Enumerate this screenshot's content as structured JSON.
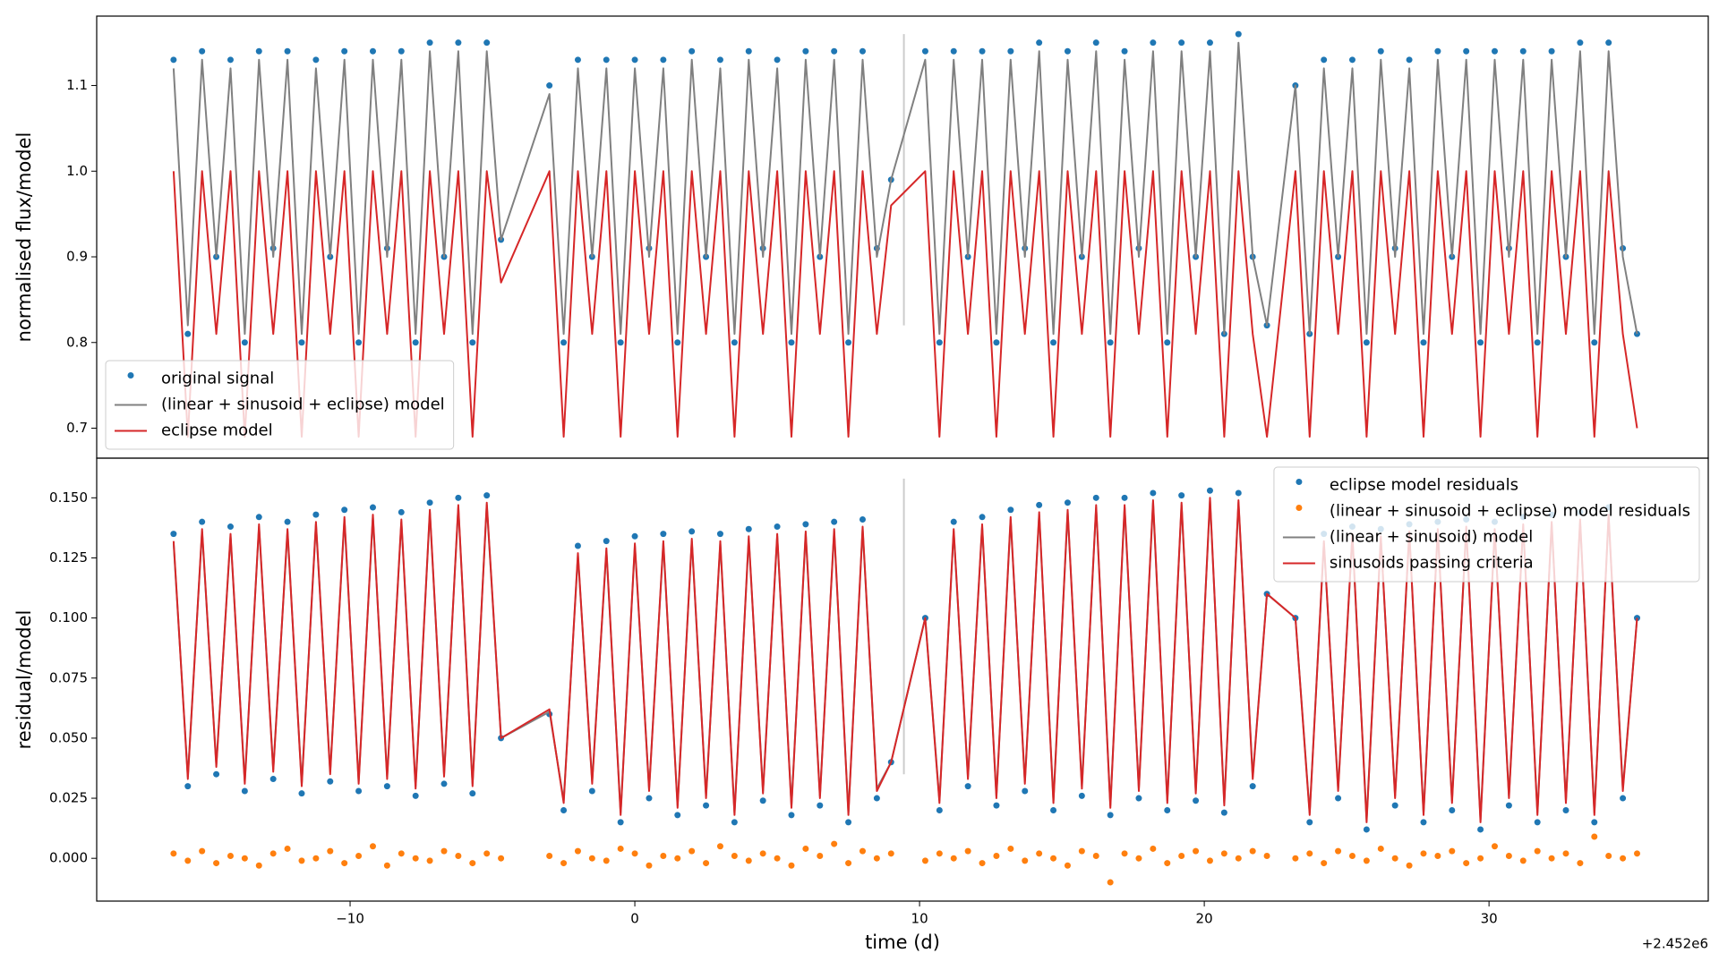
{
  "chart_data": [
    {
      "type": "line",
      "ylabel": "normalised flux/model",
      "xlim": [
        -18.9,
        37.7
      ],
      "ylim": [
        0.665,
        1.181
      ],
      "yticks": [
        0.7,
        0.8,
        0.9,
        {
          "value": 1,
          "label": "1.0"
        },
        1.1
      ],
      "legend": "lower left",
      "vline": {
        "x": 9.45,
        "y": [
          0.82,
          1.16
        ],
        "color": "#cccccc"
      },
      "x": [
        -16.2,
        -15.7,
        -15.2,
        -14.7,
        -14.2,
        -13.7,
        -13.2,
        -12.7,
        -12.2,
        -11.7,
        -11.2,
        -10.7,
        -10.2,
        -9.7,
        -9.2,
        -8.7,
        -8.2,
        -7.7,
        -7.2,
        -6.7,
        -6.2,
        -5.7,
        -5.2,
        -4.7,
        -3.0,
        -2.5,
        -2.0,
        -1.5,
        -1.0,
        -0.5,
        0.0,
        0.5,
        1.0,
        1.5,
        2.0,
        2.5,
        3.0,
        3.5,
        4.0,
        4.5,
        5.0,
        5.5,
        6.0,
        6.5,
        7.0,
        7.5,
        8.0,
        8.5,
        9.0,
        10.2,
        10.7,
        11.2,
        11.7,
        12.2,
        12.7,
        13.2,
        13.7,
        14.2,
        14.7,
        15.2,
        15.7,
        16.2,
        16.7,
        17.2,
        17.7,
        18.2,
        18.7,
        19.2,
        19.7,
        20.2,
        20.7,
        21.2,
        21.7,
        22.2,
        23.2,
        23.7,
        24.2,
        24.7,
        25.2,
        25.7,
        26.2,
        26.7,
        27.2,
        27.7,
        28.2,
        28.7,
        29.2,
        29.7,
        30.2,
        30.7,
        31.2,
        31.7,
        32.2,
        32.7,
        33.2,
        33.7,
        34.2,
        34.7,
        35.2
      ],
      "series": [
        {
          "name": "original signal",
          "type": "scatter",
          "color": "#1f77b4",
          "values": [
            1.13,
            0.81,
            1.14,
            0.9,
            1.13,
            0.8,
            1.14,
            0.91,
            1.14,
            0.8,
            1.13,
            0.9,
            1.14,
            0.8,
            1.14,
            0.91,
            1.14,
            0.8,
            1.15,
            0.9,
            1.15,
            0.8,
            1.15,
            0.92,
            1.1,
            0.8,
            1.13,
            0.9,
            1.13,
            0.8,
            1.13,
            0.91,
            1.13,
            0.8,
            1.14,
            0.9,
            1.13,
            0.8,
            1.14,
            0.91,
            1.13,
            0.8,
            1.14,
            0.9,
            1.14,
            0.8,
            1.14,
            0.91,
            0.99,
            1.14,
            0.8,
            1.14,
            0.9,
            1.14,
            0.8,
            1.14,
            0.91,
            1.15,
            0.8,
            1.14,
            0.9,
            1.15,
            0.8,
            1.14,
            0.91,
            1.15,
            0.8,
            1.15,
            0.9,
            1.15,
            0.81,
            1.16,
            0.9,
            0.82,
            1.1,
            0.81,
            1.13,
            0.9,
            1.13,
            0.8,
            1.14,
            0.91,
            1.13,
            0.8,
            1.14,
            0.9,
            1.14,
            0.8,
            1.14,
            0.91,
            1.14,
            0.8,
            1.14,
            0.9,
            1.15,
            0.8,
            1.15,
            0.91,
            0.81
          ]
        },
        {
          "name": "(linear + sinusoid + eclipse) model",
          "type": "line",
          "color": "#808080",
          "values": [
            1.12,
            0.82,
            1.13,
            0.9,
            1.12,
            0.81,
            1.13,
            0.9,
            1.13,
            0.81,
            1.12,
            0.9,
            1.13,
            0.81,
            1.13,
            0.9,
            1.13,
            0.81,
            1.14,
            0.9,
            1.14,
            0.81,
            1.14,
            0.92,
            1.09,
            0.81,
            1.12,
            0.9,
            1.12,
            0.81,
            1.12,
            0.9,
            1.12,
            0.81,
            1.13,
            0.9,
            1.12,
            0.81,
            1.13,
            0.9,
            1.12,
            0.81,
            1.13,
            0.9,
            1.13,
            0.81,
            1.13,
            0.9,
            0.99,
            1.13,
            0.81,
            1.13,
            0.9,
            1.13,
            0.81,
            1.13,
            0.9,
            1.14,
            0.81,
            1.13,
            0.9,
            1.14,
            0.81,
            1.13,
            0.9,
            1.14,
            0.81,
            1.14,
            0.9,
            1.14,
            0.81,
            1.15,
            0.9,
            0.82,
            1.1,
            0.81,
            1.12,
            0.9,
            1.12,
            0.81,
            1.13,
            0.9,
            1.12,
            0.81,
            1.13,
            0.9,
            1.13,
            0.81,
            1.13,
            0.9,
            1.13,
            0.81,
            1.13,
            0.9,
            1.14,
            0.81,
            1.14,
            0.9,
            0.81
          ]
        },
        {
          "name": "eclipse model",
          "type": "line",
          "color": "#d62728",
          "values": [
            1,
            0.69,
            1,
            0.81,
            1,
            0.69,
            1,
            0.81,
            1,
            0.69,
            1,
            0.81,
            1,
            0.69,
            1,
            0.81,
            1,
            0.69,
            1,
            0.81,
            1,
            0.69,
            1,
            0.87,
            1,
            0.69,
            1,
            0.81,
            1,
            0.69,
            1,
            0.81,
            1,
            0.69,
            1,
            0.81,
            1,
            0.69,
            1,
            0.81,
            1,
            0.69,
            1,
            0.81,
            1,
            0.69,
            1,
            0.81,
            0.96,
            1,
            0.69,
            1,
            0.81,
            1,
            0.69,
            1,
            0.81,
            1,
            0.69,
            1,
            0.81,
            1,
            0.69,
            1,
            0.81,
            1,
            0.69,
            1,
            0.81,
            1,
            0.69,
            1,
            0.81,
            0.69,
            1,
            0.69,
            1,
            0.81,
            1,
            0.69,
            1,
            0.81,
            1,
            0.69,
            1,
            0.81,
            1,
            0.69,
            1,
            0.81,
            1,
            0.69,
            1,
            0.81,
            1,
            0.69,
            1,
            0.81,
            0.7
          ]
        }
      ]
    },
    {
      "type": "line",
      "ylabel": "residual/model",
      "xlabel": "time (d)",
      "x_offset_label": "+2.452e6",
      "xlim": [
        -18.9,
        37.7
      ],
      "ylim": [
        -0.0178,
        0.1665
      ],
      "xticks": [
        {
          "value": -10,
          "label": "−10"
        },
        0,
        10,
        20,
        30
      ],
      "yticks": [
        {
          "value": 0,
          "label": "0.000"
        },
        {
          "value": 0.025,
          "label": "0.025"
        },
        {
          "value": 0.05,
          "label": "0.050"
        },
        {
          "value": 0.075,
          "label": "0.075"
        },
        {
          "value": 0.1,
          "label": "0.100"
        },
        {
          "value": 0.125,
          "label": "0.125"
        },
        {
          "value": 0.15,
          "label": "0.150"
        }
      ],
      "legend": "upper right",
      "vline": {
        "x": 9.45,
        "y": [
          0.035,
          0.158
        ],
        "color": "#cccccc"
      },
      "x": [
        -16.2,
        -15.7,
        -15.2,
        -14.7,
        -14.2,
        -13.7,
        -13.2,
        -12.7,
        -12.2,
        -11.7,
        -11.2,
        -10.7,
        -10.2,
        -9.7,
        -9.2,
        -8.7,
        -8.2,
        -7.7,
        -7.2,
        -6.7,
        -6.2,
        -5.7,
        -5.2,
        -4.7,
        -3.0,
        -2.5,
        -2.0,
        -1.5,
        -1.0,
        -0.5,
        0.0,
        0.5,
        1.0,
        1.5,
        2.0,
        2.5,
        3.0,
        3.5,
        4.0,
        4.5,
        5.0,
        5.5,
        6.0,
        6.5,
        7.0,
        7.5,
        8.0,
        8.5,
        9.0,
        10.2,
        10.7,
        11.2,
        11.7,
        12.2,
        12.7,
        13.2,
        13.7,
        14.2,
        14.7,
        15.2,
        15.7,
        16.2,
        16.7,
        17.2,
        17.7,
        18.2,
        18.7,
        19.2,
        19.7,
        20.2,
        20.7,
        21.2,
        21.7,
        22.2,
        23.2,
        23.7,
        24.2,
        24.7,
        25.2,
        25.7,
        26.2,
        26.7,
        27.2,
        27.7,
        28.2,
        28.7,
        29.2,
        29.7,
        30.2,
        30.7,
        31.2,
        31.7,
        32.2,
        32.7,
        33.2,
        33.7,
        34.2,
        34.7,
        35.2
      ],
      "series": [
        {
          "name": "eclipse model residuals",
          "type": "scatter",
          "color": "#1f77b4",
          "values": [
            0.135,
            0.03,
            0.14,
            0.035,
            0.138,
            0.028,
            0.142,
            0.033,
            0.14,
            0.027,
            0.143,
            0.032,
            0.145,
            0.028,
            0.146,
            0.03,
            0.144,
            0.026,
            0.148,
            0.031,
            0.15,
            0.027,
            0.151,
            0.05,
            0.06,
            0.02,
            0.13,
            0.028,
            0.132,
            0.015,
            0.134,
            0.025,
            0.135,
            0.018,
            0.136,
            0.022,
            0.135,
            0.015,
            0.137,
            0.024,
            0.138,
            0.018,
            0.139,
            0.022,
            0.14,
            0.015,
            0.141,
            0.025,
            0.04,
            0.1,
            0.02,
            0.14,
            0.03,
            0.142,
            0.022,
            0.145,
            0.028,
            0.147,
            0.02,
            0.148,
            0.026,
            0.15,
            0.018,
            0.15,
            0.025,
            0.152,
            0.02,
            0.151,
            0.024,
            0.153,
            0.019,
            0.152,
            0.03,
            0.11,
            0.1,
            0.015,
            0.135,
            0.025,
            0.138,
            0.012,
            0.137,
            0.022,
            0.139,
            0.015,
            0.14,
            0.02,
            0.141,
            0.012,
            0.14,
            0.022,
            0.142,
            0.015,
            0.143,
            0.02,
            0.144,
            0.015,
            0.146,
            0.025,
            0.1
          ]
        },
        {
          "name": "(linear + sinusoid + eclipse) model residuals",
          "type": "scatter",
          "color": "#ff7f0e",
          "values": [
            0.002,
            -0.001,
            0.003,
            -0.002,
            0.001,
            0.0,
            -0.003,
            0.002,
            0.004,
            -0.001,
            0.0,
            0.003,
            -0.002,
            0.001,
            0.005,
            -0.003,
            0.002,
            0.0,
            -0.001,
            0.003,
            0.001,
            -0.002,
            0.002,
            0.0,
            0.001,
            -0.002,
            0.003,
            0.0,
            -0.001,
            0.004,
            0.002,
            -0.003,
            0.001,
            0.0,
            0.003,
            -0.002,
            0.005,
            0.001,
            -0.001,
            0.002,
            0.0,
            -0.003,
            0.004,
            0.001,
            0.006,
            -0.002,
            0.003,
            0.0,
            0.002,
            -0.001,
            0.002,
            0.0,
            0.003,
            -0.002,
            0.001,
            0.004,
            -0.001,
            0.002,
            0.0,
            -0.003,
            0.003,
            0.001,
            -0.01,
            0.002,
            0.0,
            0.004,
            -0.002,
            0.001,
            0.003,
            -0.001,
            0.002,
            0.0,
            0.003,
            0.001,
            0.0,
            0.002,
            -0.002,
            0.003,
            0.001,
            -0.001,
            0.004,
            0.0,
            -0.003,
            0.002,
            0.001,
            0.003,
            -0.002,
            0.0,
            0.005,
            0.001,
            -0.001,
            0.003,
            0.0,
            0.002,
            -0.002,
            0.009,
            0.001,
            0.0,
            0.002
          ]
        },
        {
          "name": "(linear + sinusoid) model",
          "type": "line",
          "color": "#808080",
          "values": [
            0.131,
            0.034,
            0.136,
            0.039,
            0.134,
            0.032,
            0.138,
            0.037,
            0.136,
            0.031,
            0.139,
            0.036,
            0.141,
            0.032,
            0.142,
            0.034,
            0.14,
            0.03,
            0.144,
            0.035,
            0.146,
            0.031,
            0.147,
            0.05,
            0.061,
            0.024,
            0.126,
            0.032,
            0.128,
            0.019,
            0.13,
            0.029,
            0.131,
            0.022,
            0.132,
            0.026,
            0.131,
            0.019,
            0.133,
            0.028,
            0.134,
            0.022,
            0.135,
            0.026,
            0.136,
            0.019,
            0.137,
            0.029,
            0.04,
            0.1,
            0.024,
            0.136,
            0.034,
            0.138,
            0.026,
            0.141,
            0.032,
            0.143,
            0.024,
            0.144,
            0.03,
            0.146,
            0.022,
            0.146,
            0.029,
            0.148,
            0.024,
            0.147,
            0.028,
            0.149,
            0.023,
            0.148,
            0.034,
            0.11,
            0.1,
            0.019,
            0.131,
            0.029,
            0.134,
            0.016,
            0.133,
            0.026,
            0.135,
            0.019,
            0.136,
            0.024,
            0.137,
            0.016,
            0.136,
            0.026,
            0.138,
            0.019,
            0.139,
            0.024,
            0.14,
            0.019,
            0.142,
            0.029,
            0.1
          ]
        },
        {
          "name": "sinusoids passing criteria",
          "type": "line",
          "color": "#d62728",
          "values": [
            0.132,
            0.033,
            0.137,
            0.038,
            0.135,
            0.031,
            0.139,
            0.036,
            0.137,
            0.03,
            0.14,
            0.035,
            0.142,
            0.031,
            0.143,
            0.033,
            0.141,
            0.029,
            0.145,
            0.034,
            0.147,
            0.03,
            0.148,
            0.05,
            0.062,
            0.023,
            0.127,
            0.031,
            0.129,
            0.018,
            0.131,
            0.028,
            0.132,
            0.021,
            0.133,
            0.025,
            0.132,
            0.018,
            0.134,
            0.027,
            0.135,
            0.021,
            0.136,
            0.025,
            0.137,
            0.018,
            0.138,
            0.028,
            0.04,
            0.1,
            0.023,
            0.137,
            0.033,
            0.139,
            0.025,
            0.142,
            0.031,
            0.144,
            0.023,
            0.145,
            0.029,
            0.147,
            0.021,
            0.147,
            0.028,
            0.149,
            0.023,
            0.148,
            0.027,
            0.15,
            0.022,
            0.149,
            0.033,
            0.11,
            0.1,
            0.018,
            0.132,
            0.028,
            0.135,
            0.015,
            0.134,
            0.025,
            0.136,
            0.018,
            0.137,
            0.023,
            0.138,
            0.015,
            0.137,
            0.025,
            0.139,
            0.018,
            0.14,
            0.023,
            0.141,
            0.018,
            0.143,
            0.028,
            0.1
          ]
        }
      ]
    }
  ]
}
